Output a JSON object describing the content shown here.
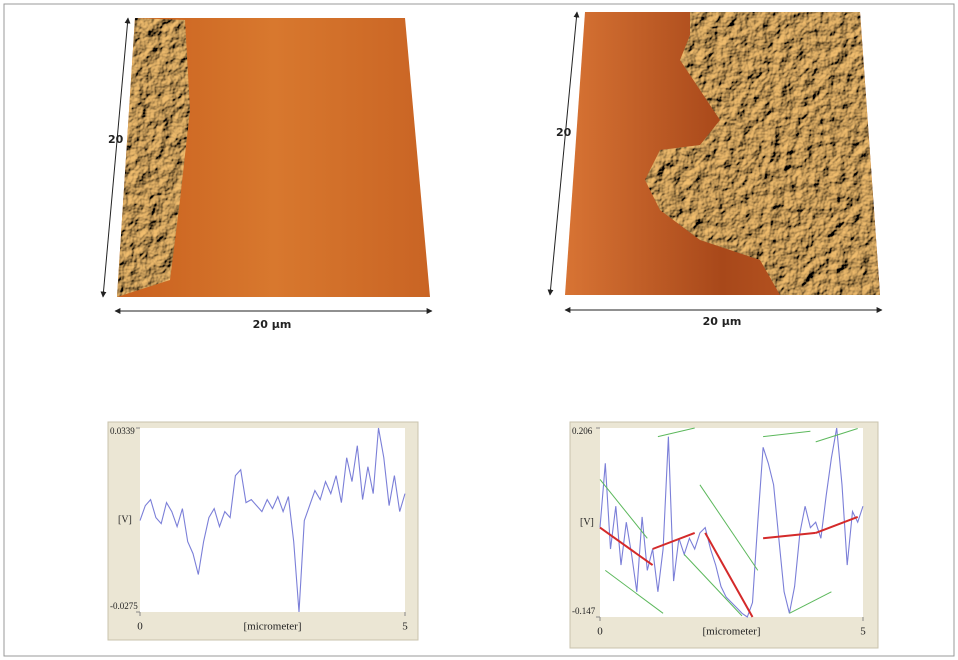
{
  "images": [
    {
      "side_label": "20",
      "bottom_label": "20 µm"
    },
    {
      "side_label": "20",
      "bottom_label": "20 µm"
    }
  ],
  "chart_data": [
    {
      "type": "line",
      "ylabel": "[V]",
      "xlabel": "[micrometer]",
      "ylim": [
        -0.0275,
        0.0339
      ],
      "yticks": [
        -0.0275,
        0.0339
      ],
      "xlim": [
        0,
        5
      ],
      "xticks": [
        0,
        5
      ],
      "x": [
        0,
        0.1,
        0.2,
        0.3,
        0.4,
        0.5,
        0.6,
        0.7,
        0.8,
        0.9,
        1,
        1.1,
        1.2,
        1.3,
        1.4,
        1.5,
        1.6,
        1.7,
        1.8,
        1.9,
        2,
        2.1,
        2.2,
        2.3,
        2.4,
        2.5,
        2.6,
        2.7,
        2.8,
        2.9,
        3,
        3.1,
        3.2,
        3.3,
        3.4,
        3.5,
        3.6,
        3.7,
        3.8,
        3.9,
        4,
        4.1,
        4.2,
        4.3,
        4.4,
        4.5,
        4.6,
        4.7,
        4.8,
        4.9,
        5
      ],
      "series": [
        {
          "color": "#7b7fd8",
          "values": [
            0.003,
            0.008,
            0.01,
            0.004,
            0.002,
            0.009,
            0.006,
            0.001,
            0.007,
            -0.004,
            -0.008,
            -0.015,
            -0.004,
            0.004,
            0.007,
            0.001,
            0.006,
            0.004,
            0.018,
            0.02,
            0.009,
            0.01,
            0.008,
            0.006,
            0.01,
            0.007,
            0.011,
            0.006,
            0.011,
            -0.004,
            -0.0275,
            0.003,
            0.008,
            0.013,
            0.01,
            0.016,
            0.012,
            0.018,
            0.009,
            0.024,
            0.016,
            0.028,
            0.01,
            0.021,
            0.012,
            0.0339,
            0.024,
            0.008,
            0.018,
            0.006,
            0.012
          ]
        }
      ],
      "fit_lines": []
    },
    {
      "type": "line",
      "ylabel": "[V]",
      "xlabel": "[micrometer]",
      "ylim": [
        -0.147,
        0.206
      ],
      "yticks": [
        -0.147,
        0.206
      ],
      "xlim": [
        0,
        5
      ],
      "xticks": [
        0,
        5
      ],
      "x": [
        0,
        0.1,
        0.2,
        0.3,
        0.4,
        0.5,
        0.6,
        0.7,
        0.8,
        0.9,
        1,
        1.1,
        1.2,
        1.3,
        1.4,
        1.5,
        1.6,
        1.7,
        1.8,
        1.9,
        2,
        2.1,
        2.2,
        2.3,
        2.4,
        2.5,
        2.6,
        2.7,
        2.8,
        2.9,
        3,
        3.1,
        3.2,
        3.3,
        3.4,
        3.5,
        3.6,
        3.7,
        3.8,
        3.9,
        4,
        4.1,
        4.2,
        4.3,
        4.4,
        4.5,
        4.6,
        4.7,
        4.8,
        4.9,
        5
      ],
      "series": [
        {
          "color": "#7b7fd8",
          "values": [
            0.02,
            0.14,
            -0.02,
            0.06,
            -0.05,
            0.03,
            -0.03,
            -0.1,
            0.04,
            -0.06,
            -0.02,
            -0.1,
            -0.02,
            0.19,
            -0.08,
            0.0,
            -0.03,
            0.0,
            -0.02,
            0.01,
            0.02,
            -0.02,
            -0.05,
            -0.09,
            -0.11,
            -0.12,
            -0.13,
            -0.14,
            -0.147,
            -0.12,
            0.03,
            0.17,
            0.14,
            0.1,
            0.0,
            -0.1,
            -0.14,
            -0.09,
            0.01,
            0.06,
            0.02,
            0.03,
            0.0,
            0.08,
            0.15,
            0.206,
            0.1,
            -0.05,
            0.05,
            0.03,
            0.06
          ]
        }
      ],
      "fit_lines": [
        {
          "color": "#d42a2a",
          "x": [
            0,
            1.0
          ],
          "values": [
            0.02,
            -0.05
          ]
        },
        {
          "color": "#d42a2a",
          "x": [
            1.0,
            1.8
          ],
          "values": [
            -0.02,
            0.01
          ]
        },
        {
          "color": "#d42a2a",
          "x": [
            2.0,
            2.9
          ],
          "values": [
            0.01,
            -0.147
          ]
        },
        {
          "color": "#d42a2a",
          "x": [
            3.1,
            4.1
          ],
          "values": [
            0.0,
            0.01
          ]
        },
        {
          "color": "#d42a2a",
          "x": [
            4.1,
            4.9
          ],
          "values": [
            0.01,
            0.04
          ]
        },
        {
          "color": "#5cb85c",
          "x": [
            0,
            0.9
          ],
          "values": [
            0.11,
            0.0
          ]
        },
        {
          "color": "#5cb85c",
          "x": [
            0.1,
            1.2
          ],
          "values": [
            -0.06,
            -0.14
          ]
        },
        {
          "color": "#5cb85c",
          "x": [
            1.1,
            1.8
          ],
          "values": [
            0.19,
            0.206
          ]
        },
        {
          "color": "#5cb85c",
          "x": [
            1.9,
            3.0
          ],
          "values": [
            0.1,
            -0.06
          ]
        },
        {
          "color": "#5cb85c",
          "x": [
            1.6,
            2.7
          ],
          "values": [
            -0.03,
            -0.145
          ]
        },
        {
          "color": "#5cb85c",
          "x": [
            3.1,
            4.0
          ],
          "values": [
            0.19,
            0.2
          ]
        },
        {
          "color": "#5cb85c",
          "x": [
            3.6,
            4.4
          ],
          "values": [
            -0.14,
            -0.1
          ]
        },
        {
          "color": "#5cb85c",
          "x": [
            4.1,
            4.9
          ],
          "values": [
            0.18,
            0.205
          ]
        }
      ]
    }
  ]
}
